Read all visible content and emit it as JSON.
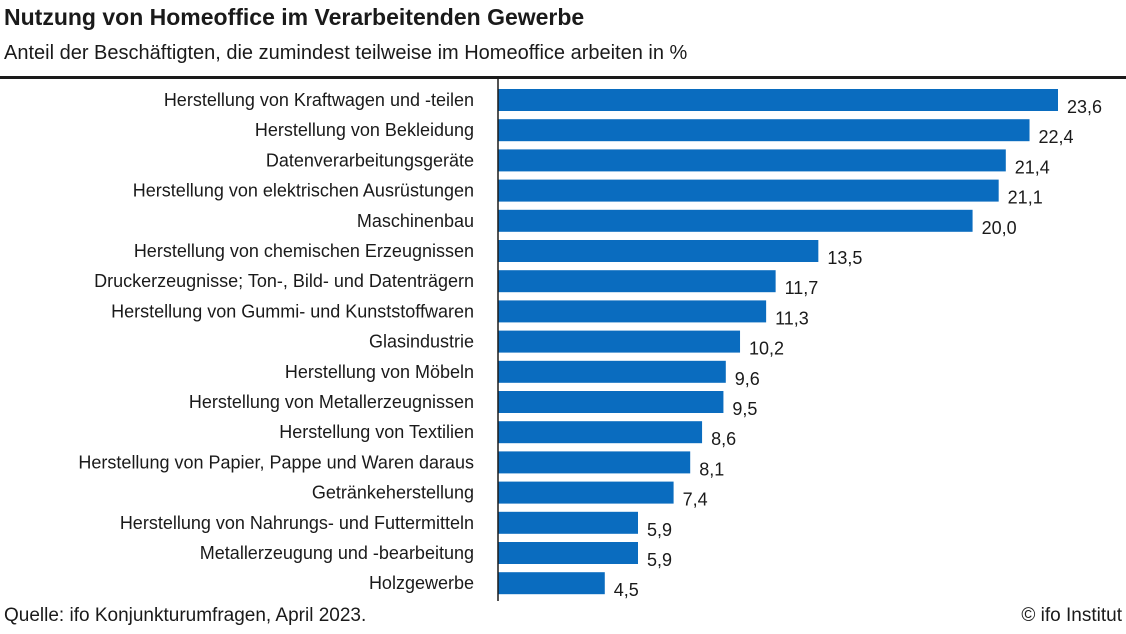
{
  "header": {
    "title": "Nutzung von Homeoffice im Verarbeitenden Gewerbe",
    "subtitle": "Anteil der Beschäftigten, die zumindest teilweise im Homeoffice arbeiten in %"
  },
  "footer": {
    "source": "Quelle: ifo Konjunkturumfragen, April 2023.",
    "copyright": "© ifo Institut"
  },
  "colors": {
    "bar": "#0a6cbf",
    "axis": "#1a1a1a"
  },
  "chart_data": {
    "type": "bar",
    "orientation": "horizontal",
    "title": "Nutzung von Homeoffice im Verarbeitenden Gewerbe",
    "subtitle": "Anteil der Beschäftigten, die zumindest teilweise im Homeoffice arbeiten in %",
    "xlim": [
      0,
      23.6
    ],
    "grid": false,
    "categories": [
      "Herstellung von Kraftwagen und -teilen",
      "Herstellung von Bekleidung",
      "Datenverarbeitungsgeräte",
      "Herstellung von elektrischen Ausrüstungen",
      "Maschinenbau",
      "Herstellung von chemischen Erzeugnissen",
      "Druckerzeugnisse; Ton-, Bild- und Datenträgern",
      "Herstellung von Gummi- und Kunststoffwaren",
      "Glasindustrie",
      "Herstellung von Möbeln",
      "Herstellung von Metallerzeugnissen",
      "Herstellung von Textilien",
      "Herstellung von Papier, Pappe und Waren daraus",
      "Getränkeherstellung",
      "Herstellung von Nahrungs- und Futtermitteln",
      "Metallerzeugung und -bearbeitung",
      "Holzgewerbe"
    ],
    "values": [
      23.6,
      22.4,
      21.4,
      21.1,
      20.0,
      13.5,
      11.7,
      11.3,
      10.2,
      9.6,
      9.5,
      8.6,
      8.1,
      7.4,
      5.9,
      5.9,
      4.5
    ],
    "value_labels": [
      "23,6",
      "22,4",
      "21,4",
      "21,1",
      "20,0",
      "13,5",
      "11,7",
      "11,3",
      "10,2",
      "9,6",
      "9,5",
      "8,6",
      "8,1",
      "7,4",
      "5,9",
      "5,9",
      "4,5"
    ]
  }
}
